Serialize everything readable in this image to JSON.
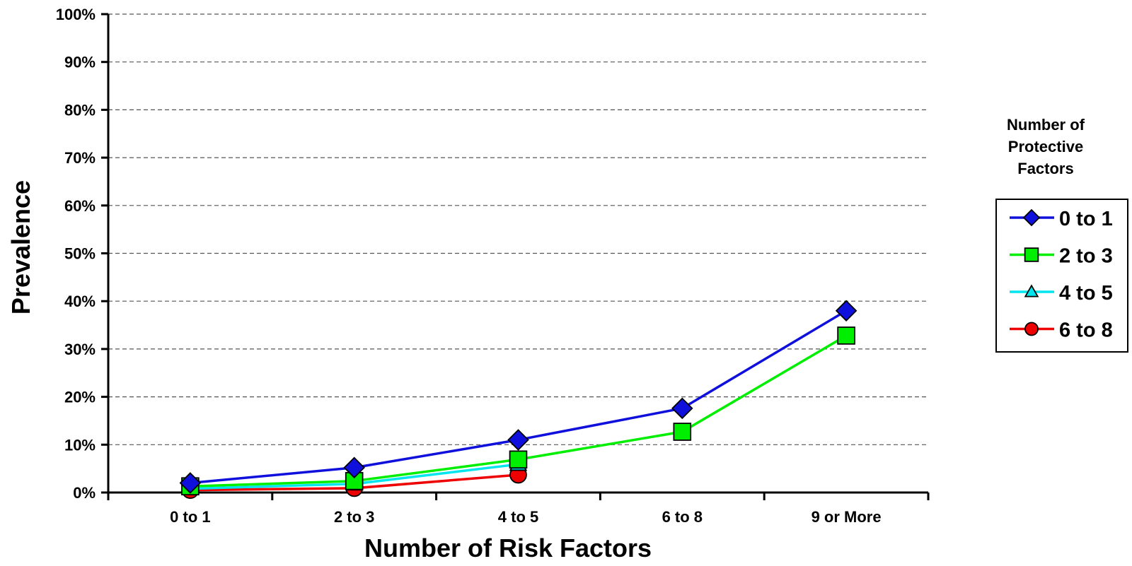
{
  "chart_data": {
    "type": "line",
    "xlabel": "Number of Risk Factors",
    "ylabel": "Prevalence",
    "categories": [
      "0 to 1",
      "2 to 3",
      "4 to 5",
      "6 to 8",
      "9 or More"
    ],
    "ylim": [
      0,
      100
    ],
    "yticks": [
      0,
      10,
      20,
      30,
      40,
      50,
      60,
      70,
      80,
      90,
      100
    ],
    "ytick_labels": [
      "0%",
      "10%",
      "20%",
      "30%",
      "40%",
      "50%",
      "60%",
      "70%",
      "80%",
      "90%",
      "100%"
    ],
    "grid": "horizontal dashed",
    "legend": {
      "title_lines": [
        "Number of",
        "Protective",
        "Factors"
      ],
      "placement": "right"
    },
    "series": [
      {
        "name": "0 to 1",
        "color": "#1010dd",
        "marker": "diamond",
        "values": [
          2.0,
          5.2,
          11.0,
          17.6,
          38.0
        ]
      },
      {
        "name": "2 to 3",
        "color": "#00ee00",
        "marker": "square",
        "values": [
          1.3,
          2.4,
          6.9,
          12.7,
          32.8
        ]
      },
      {
        "name": "4 to 5",
        "color": "#00e5ee",
        "marker": "triangle",
        "values": [
          0.8,
          1.8,
          5.9,
          null,
          null
        ]
      },
      {
        "name": "6 to 8",
        "color": "#ee0000",
        "marker": "circle",
        "values": [
          0.5,
          0.9,
          3.7,
          null,
          null
        ]
      }
    ]
  }
}
